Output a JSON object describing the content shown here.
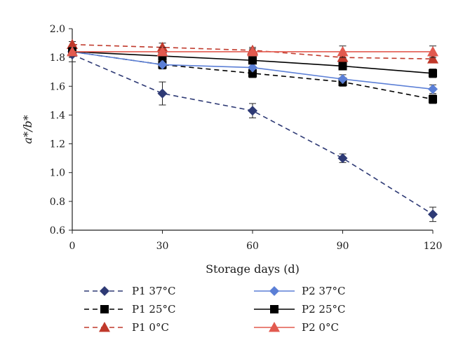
{
  "chart_data": {
    "type": "line",
    "xlabel": "Storage days (d)",
    "ylabel": "a*/b*",
    "x": [
      0,
      30,
      60,
      90,
      120
    ],
    "xlim": [
      0,
      120
    ],
    "ylim": [
      0.6,
      2.0
    ],
    "xticks": [
      "0",
      "30",
      "60",
      "90",
      "120"
    ],
    "yticks": [
      "0.6",
      "0.8",
      "1.0",
      "1.2",
      "1.4",
      "1.6",
      "1.8",
      "2.0"
    ],
    "grid": false,
    "legend_position": "bottom",
    "series": [
      {
        "name": "P1 37°C",
        "values": [
          1.82,
          1.55,
          1.43,
          1.1,
          0.71
        ],
        "errors": [
          0.05,
          0.08,
          0.05,
          0.03,
          0.05
        ],
        "color": "#2e3a75",
        "marker": "diamond",
        "line": "dashed"
      },
      {
        "name": "P1 25°C",
        "values": [
          1.84,
          1.75,
          1.69,
          1.63,
          1.51
        ],
        "errors": [
          0.03,
          0.03,
          0.03,
          0.03,
          0.03
        ],
        "color": "#000000",
        "marker": "square",
        "line": "dashed"
      },
      {
        "name": "P1 0°C",
        "values": [
          1.89,
          1.87,
          1.85,
          1.8,
          1.79
        ],
        "errors": [
          0.02,
          0.03,
          0.02,
          0.02,
          0.02
        ],
        "color": "#c0392b",
        "marker": "triangle",
        "line": "dashed"
      },
      {
        "name": "P2 37°C",
        "values": [
          1.84,
          1.75,
          1.73,
          1.65,
          1.58
        ],
        "errors": [
          0.03,
          0.03,
          0.03,
          0.03,
          0.03
        ],
        "color": "#5b7fd6",
        "marker": "diamond",
        "line": "solid"
      },
      {
        "name": "P2 25°C",
        "values": [
          1.84,
          1.81,
          1.78,
          1.74,
          1.69
        ],
        "errors": [
          0.02,
          0.02,
          0.02,
          0.02,
          0.03
        ],
        "color": "#000000",
        "marker": "square",
        "line": "solid"
      },
      {
        "name": "P2 0°C",
        "values": [
          1.84,
          1.84,
          1.84,
          1.84,
          1.84
        ],
        "errors": [
          0.03,
          0.03,
          0.02,
          0.04,
          0.04
        ],
        "color": "#e25a4f",
        "marker": "triangle",
        "line": "solid"
      }
    ]
  }
}
